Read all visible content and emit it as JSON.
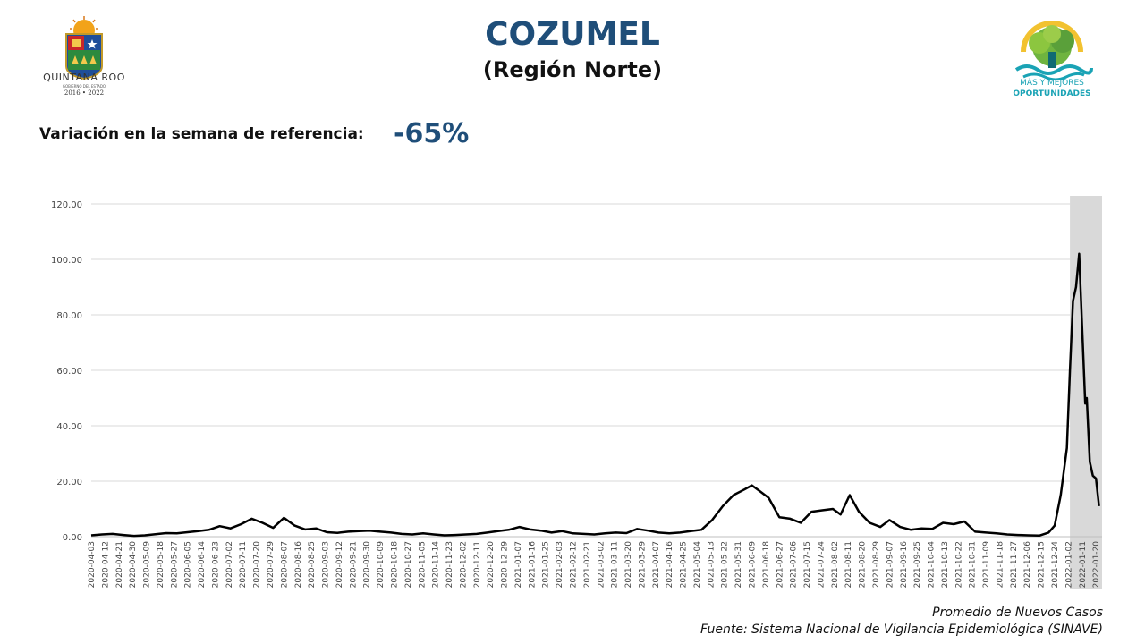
{
  "header": {
    "title": "COZUMEL",
    "subtitle": "(Región Norte)",
    "left_logo_text": "QUINTANA ROO",
    "left_logo_sub": "GOBIERNO DEL ESTADO",
    "left_logo_years": "2016 • 2022",
    "right_logo_line1": "MÁS Y MEJORES",
    "right_logo_line2": "OPORTUNIDADES"
  },
  "variation": {
    "label": "Variación en la semana de referencia:",
    "value": "-65%"
  },
  "footer": {
    "line1": "Promedio de Nuevos Casos",
    "line2": "Fuente: Sistema Nacional de Vigilancia Epidemiológica (SINAVE)"
  },
  "colors": {
    "title": "#1f4e79",
    "line": "#000000",
    "highlight": "#d9d9d9",
    "grid": "#d9d9d9"
  },
  "chart_data": {
    "type": "line",
    "x_start": "2020-04-03",
    "x_end": "2022-01-24",
    "ylim": [
      0,
      120
    ],
    "yticks": [
      "0.00",
      "20.00",
      "40.00",
      "60.00",
      "80.00",
      "100.00",
      "120.00"
    ],
    "xticks": [
      "2020-04-03",
      "2020-04-12",
      "2020-04-21",
      "2020-04-30",
      "2020-05-09",
      "2020-05-18",
      "2020-05-27",
      "2020-06-05",
      "2020-06-14",
      "2020-06-23",
      "2020-07-02",
      "2020-07-11",
      "2020-07-20",
      "2020-07-29",
      "2020-08-07",
      "2020-08-16",
      "2020-08-25",
      "2020-09-03",
      "2020-09-12",
      "2020-09-21",
      "2020-09-30",
      "2020-10-09",
      "2020-10-18",
      "2020-10-27",
      "2020-11-05",
      "2020-11-14",
      "2020-11-23",
      "2020-12-02",
      "2020-12-11",
      "2020-12-20",
      "2020-12-29",
      "2021-01-07",
      "2021-01-16",
      "2021-01-25",
      "2021-02-03",
      "2021-02-12",
      "2021-02-21",
      "2021-03-02",
      "2021-03-11",
      "2021-03-20",
      "2021-03-29",
      "2021-04-07",
      "2021-04-16",
      "2021-04-25",
      "2021-05-04",
      "2021-05-13",
      "2021-05-22",
      "2021-05-31",
      "2021-06-09",
      "2021-06-18",
      "2021-06-27",
      "2021-07-06",
      "2021-07-15",
      "2021-07-24",
      "2021-08-02",
      "2021-08-11",
      "2021-08-20",
      "2021-08-29",
      "2021-09-07",
      "2021-09-16",
      "2021-09-25",
      "2021-10-04",
      "2021-10-13",
      "2021-10-22",
      "2021-10-31",
      "2021-11-09",
      "2021-11-18",
      "2021-11-27",
      "2021-12-06",
      "2021-12-15",
      "2021-12-24",
      "2022-01-02",
      "2022-01-11",
      "2022-01-20"
    ],
    "highlight_range": [
      "2022-01-03",
      "2022-01-24"
    ],
    "grid": true,
    "legend": "none",
    "series": [
      {
        "points": [
          [
            "2020-04-03",
            0.5
          ],
          [
            "2020-04-10",
            0.8
          ],
          [
            "2020-04-17",
            1.0
          ],
          [
            "2020-04-24",
            0.6
          ],
          [
            "2020-05-01",
            0.3
          ],
          [
            "2020-05-08",
            0.5
          ],
          [
            "2020-05-15",
            0.9
          ],
          [
            "2020-05-22",
            1.3
          ],
          [
            "2020-05-29",
            1.2
          ],
          [
            "2020-06-05",
            1.6
          ],
          [
            "2020-06-12",
            2.0
          ],
          [
            "2020-06-19",
            2.5
          ],
          [
            "2020-06-26",
            3.8
          ],
          [
            "2020-07-03",
            3.0
          ],
          [
            "2020-07-10",
            4.5
          ],
          [
            "2020-07-17",
            6.5
          ],
          [
            "2020-07-24",
            5.0
          ],
          [
            "2020-07-31",
            3.2
          ],
          [
            "2020-08-07",
            6.8
          ],
          [
            "2020-08-14",
            4.0
          ],
          [
            "2020-08-21",
            2.6
          ],
          [
            "2020-08-28",
            3.0
          ],
          [
            "2020-09-04",
            1.6
          ],
          [
            "2020-09-11",
            1.4
          ],
          [
            "2020-09-18",
            1.8
          ],
          [
            "2020-09-25",
            2.0
          ],
          [
            "2020-10-02",
            2.2
          ],
          [
            "2020-10-09",
            1.8
          ],
          [
            "2020-10-16",
            1.5
          ],
          [
            "2020-10-23",
            1.0
          ],
          [
            "2020-10-30",
            0.8
          ],
          [
            "2020-11-06",
            1.2
          ],
          [
            "2020-11-13",
            0.8
          ],
          [
            "2020-11-20",
            0.5
          ],
          [
            "2020-11-27",
            0.6
          ],
          [
            "2020-12-04",
            0.8
          ],
          [
            "2020-12-11",
            1.0
          ],
          [
            "2020-12-18",
            1.5
          ],
          [
            "2020-12-25",
            2.0
          ],
          [
            "2021-01-01",
            2.5
          ],
          [
            "2021-01-08",
            3.5
          ],
          [
            "2021-01-15",
            2.6
          ],
          [
            "2021-01-22",
            2.2
          ],
          [
            "2021-01-29",
            1.5
          ],
          [
            "2021-02-05",
            2.0
          ],
          [
            "2021-02-12",
            1.2
          ],
          [
            "2021-02-19",
            1.0
          ],
          [
            "2021-02-26",
            0.8
          ],
          [
            "2021-03-05",
            1.2
          ],
          [
            "2021-03-12",
            1.5
          ],
          [
            "2021-03-19",
            1.3
          ],
          [
            "2021-03-26",
            2.8
          ],
          [
            "2021-04-02",
            2.2
          ],
          [
            "2021-04-09",
            1.5
          ],
          [
            "2021-04-16",
            1.2
          ],
          [
            "2021-04-23",
            1.5
          ],
          [
            "2021-04-30",
            2.0
          ],
          [
            "2021-05-07",
            2.5
          ],
          [
            "2021-05-14",
            6.0
          ],
          [
            "2021-05-21",
            11.0
          ],
          [
            "2021-05-28",
            15.0
          ],
          [
            "2021-06-04",
            17.0
          ],
          [
            "2021-06-09",
            18.5
          ],
          [
            "2021-06-14",
            16.5
          ],
          [
            "2021-06-20",
            14.0
          ],
          [
            "2021-06-27",
            7.0
          ],
          [
            "2021-07-04",
            6.5
          ],
          [
            "2021-07-11",
            5.0
          ],
          [
            "2021-07-18",
            9.0
          ],
          [
            "2021-07-25",
            9.5
          ],
          [
            "2021-08-01",
            10.0
          ],
          [
            "2021-08-06",
            8.0
          ],
          [
            "2021-08-12",
            15.0
          ],
          [
            "2021-08-18",
            9.0
          ],
          [
            "2021-08-25",
            5.0
          ],
          [
            "2021-09-01",
            3.5
          ],
          [
            "2021-09-07",
            6.0
          ],
          [
            "2021-09-14",
            3.5
          ],
          [
            "2021-09-21",
            2.5
          ],
          [
            "2021-09-28",
            3.0
          ],
          [
            "2021-10-05",
            2.8
          ],
          [
            "2021-10-12",
            5.0
          ],
          [
            "2021-10-19",
            4.5
          ],
          [
            "2021-10-26",
            5.5
          ],
          [
            "2021-11-02",
            1.8
          ],
          [
            "2021-11-09",
            1.5
          ],
          [
            "2021-11-16",
            1.2
          ],
          [
            "2021-11-23",
            0.8
          ],
          [
            "2021-11-30",
            0.6
          ],
          [
            "2021-12-07",
            0.5
          ],
          [
            "2021-12-14",
            0.4
          ],
          [
            "2021-12-20",
            1.5
          ],
          [
            "2021-12-24",
            4.0
          ],
          [
            "2021-12-28",
            15.0
          ],
          [
            "2022-01-01",
            32.0
          ],
          [
            "2022-01-03",
            60.0
          ],
          [
            "2022-01-05",
            85.0
          ],
          [
            "2022-01-07",
            90.0
          ],
          [
            "2022-01-09",
            102.0
          ],
          [
            "2022-01-11",
            75.0
          ],
          [
            "2022-01-13",
            48.0
          ],
          [
            "2022-01-14",
            50.0
          ],
          [
            "2022-01-16",
            27.0
          ],
          [
            "2022-01-18",
            22.0
          ],
          [
            "2022-01-20",
            21.0
          ],
          [
            "2022-01-22",
            11.0
          ]
        ]
      }
    ]
  }
}
